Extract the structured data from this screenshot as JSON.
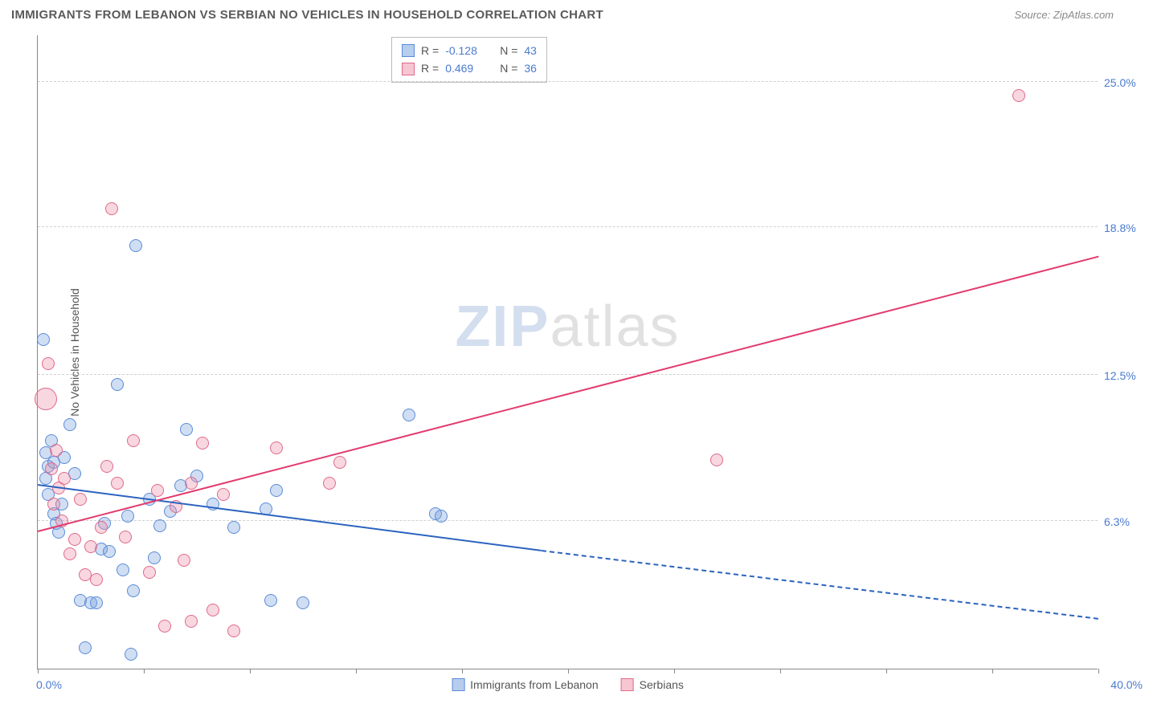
{
  "header": {
    "title": "IMMIGRANTS FROM LEBANON VS SERBIAN NO VEHICLES IN HOUSEHOLD CORRELATION CHART",
    "source": "Source: ZipAtlas.com"
  },
  "chart": {
    "type": "scatter",
    "background_color": "#ffffff",
    "axis_color": "#888888",
    "grid_color": "#d0d0d0",
    "tick_color": "#4a7bd0",
    "label_color": "#555555",
    "ylabel": "No Vehicles in Household",
    "xlim": [
      0,
      40
    ],
    "ylim": [
      0,
      27
    ],
    "yticks": [
      {
        "v": 6.3,
        "label": "6.3%"
      },
      {
        "v": 12.5,
        "label": "12.5%"
      },
      {
        "v": 18.8,
        "label": "18.8%"
      },
      {
        "v": 25.0,
        "label": "25.0%"
      }
    ],
    "xtick_positions": [
      0,
      4,
      8,
      12,
      16,
      20,
      24,
      28,
      32,
      36,
      40
    ],
    "xstart_label": "0.0%",
    "xend_label": "40.0%",
    "watermark": {
      "part1": "ZIP",
      "part2": "atlas"
    },
    "legend": {
      "rows": [
        {
          "swatch_fill": "#b7cdee",
          "swatch_border": "#5a8bd8",
          "r": "-0.128",
          "n": "43"
        },
        {
          "swatch_fill": "#f6c6d2",
          "swatch_border": "#e06a8a",
          "r": "0.469",
          "n": "36"
        }
      ],
      "r_prefix": "R = ",
      "n_prefix": "N = "
    },
    "bottom_legend": [
      {
        "swatch_fill": "#b7cdee",
        "swatch_border": "#5a8bd8",
        "label": "Immigrants from Lebanon"
      },
      {
        "swatch_fill": "#f6c6d2",
        "swatch_border": "#e06a8a",
        "label": "Serbians"
      }
    ],
    "series": [
      {
        "name": "lebanon",
        "fill": "rgba(120,160,220,0.35)",
        "stroke": "#5a8bd8",
        "radius": 8,
        "trend": {
          "x1": 0,
          "y1": 7.8,
          "x2": 19,
          "y2": 5.0,
          "color": "#2b63c0",
          "extend_to_x": 40,
          "extend_y": 2.1
        },
        "points": [
          [
            0.2,
            14.0
          ],
          [
            0.3,
            9.2
          ],
          [
            0.3,
            8.1
          ],
          [
            0.4,
            8.6
          ],
          [
            0.4,
            7.4
          ],
          [
            0.5,
            9.7
          ],
          [
            0.6,
            8.8
          ],
          [
            0.6,
            6.6
          ],
          [
            0.7,
            6.2
          ],
          [
            0.8,
            5.8
          ],
          [
            0.9,
            7.0
          ],
          [
            1.0,
            9.0
          ],
          [
            1.2,
            10.4
          ],
          [
            1.4,
            8.3
          ],
          [
            1.6,
            2.9
          ],
          [
            1.8,
            0.9
          ],
          [
            2.0,
            2.8
          ],
          [
            2.2,
            2.8
          ],
          [
            2.4,
            5.1
          ],
          [
            2.5,
            6.2
          ],
          [
            2.7,
            5.0
          ],
          [
            3.0,
            12.1
          ],
          [
            3.2,
            4.2
          ],
          [
            3.4,
            6.5
          ],
          [
            3.5,
            0.6
          ],
          [
            3.6,
            3.3
          ],
          [
            3.7,
            18.0
          ],
          [
            4.2,
            7.2
          ],
          [
            4.4,
            4.7
          ],
          [
            4.6,
            6.1
          ],
          [
            5.0,
            6.7
          ],
          [
            5.4,
            7.8
          ],
          [
            5.6,
            10.2
          ],
          [
            6.0,
            8.2
          ],
          [
            6.6,
            7.0
          ],
          [
            7.4,
            6.0
          ],
          [
            8.6,
            6.8
          ],
          [
            8.8,
            2.9
          ],
          [
            9.0,
            7.6
          ],
          [
            10.0,
            2.8
          ],
          [
            14.0,
            10.8
          ],
          [
            15.0,
            6.6
          ],
          [
            15.2,
            6.5
          ]
        ]
      },
      {
        "name": "serbian",
        "fill": "rgba(235,140,165,0.35)",
        "stroke": "#e06a8a",
        "radius": 8,
        "trend": {
          "x1": 0,
          "y1": 5.8,
          "x2": 40,
          "y2": 17.5,
          "color": "#e23b6e"
        },
        "points": [
          [
            0.3,
            11.5,
            14
          ],
          [
            0.4,
            13.0
          ],
          [
            0.5,
            8.5
          ],
          [
            0.6,
            7.0
          ],
          [
            0.7,
            9.3
          ],
          [
            0.8,
            7.7
          ],
          [
            0.9,
            6.3
          ],
          [
            1.0,
            8.1
          ],
          [
            1.2,
            4.9
          ],
          [
            1.4,
            5.5
          ],
          [
            1.6,
            7.2
          ],
          [
            1.8,
            4.0
          ],
          [
            2.0,
            5.2
          ],
          [
            2.2,
            3.8
          ],
          [
            2.4,
            6.0
          ],
          [
            2.6,
            8.6
          ],
          [
            2.8,
            19.6
          ],
          [
            3.0,
            7.9
          ],
          [
            3.3,
            5.6
          ],
          [
            3.6,
            9.7
          ],
          [
            4.2,
            4.1
          ],
          [
            4.5,
            7.6
          ],
          [
            4.8,
            1.8
          ],
          [
            5.2,
            6.9
          ],
          [
            5.5,
            4.6
          ],
          [
            5.8,
            2.0
          ],
          [
            5.8,
            7.9
          ],
          [
            6.2,
            9.6
          ],
          [
            6.6,
            2.5
          ],
          [
            7.0,
            7.4
          ],
          [
            7.4,
            1.6
          ],
          [
            9.0,
            9.4
          ],
          [
            11.0,
            7.9
          ],
          [
            11.4,
            8.8
          ],
          [
            25.6,
            8.9
          ],
          [
            37.0,
            24.4
          ]
        ]
      }
    ]
  }
}
